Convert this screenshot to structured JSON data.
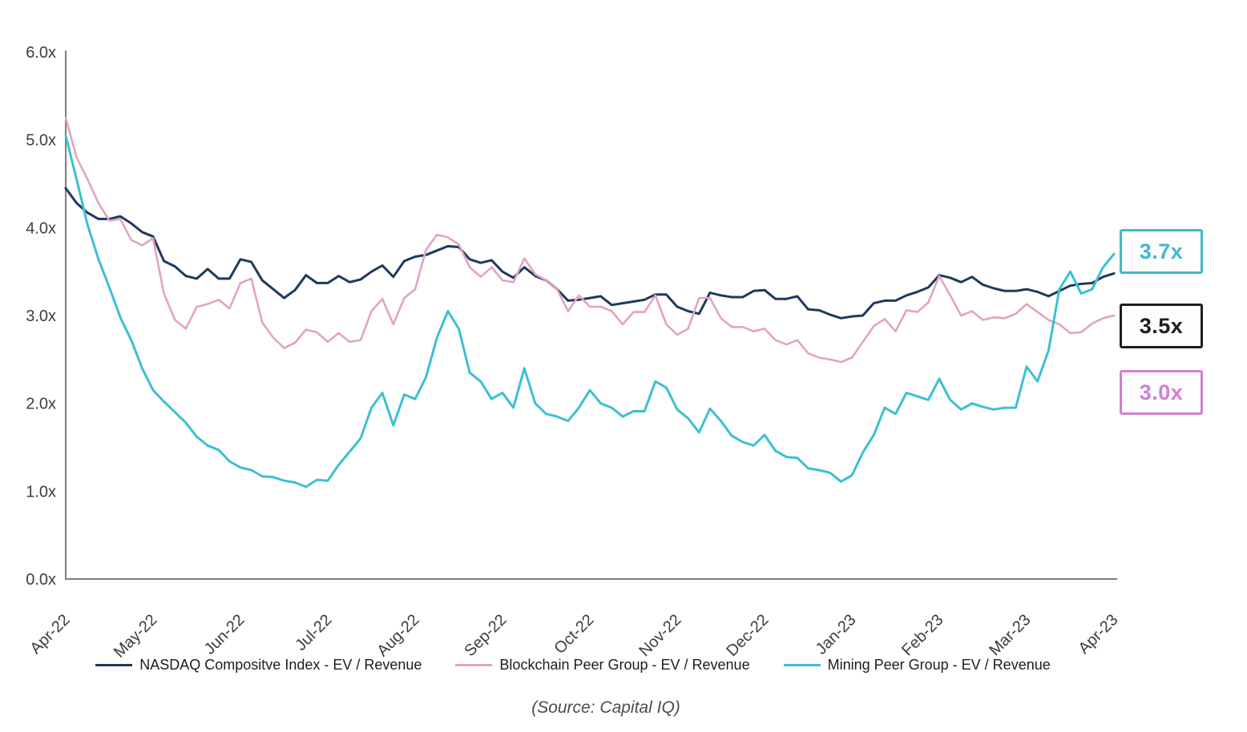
{
  "chart_data": {
    "type": "line",
    "title": "",
    "grid": false,
    "legend_position": "bottom",
    "x_axis": {
      "tick_labels": [
        "Apr-22",
        "May-22",
        "Jun-22",
        "Jul-22",
        "Aug-22",
        "Sep-22",
        "Oct-22",
        "Nov-22",
        "Dec-22",
        "Jan-23",
        "Feb-23",
        "Mar-23",
        "Apr-23"
      ],
      "label_rotation_deg": -45
    },
    "y_axis": {
      "tick_labels": [
        "0.0x",
        "1.0x",
        "2.0x",
        "3.0x",
        "4.0x",
        "5.0x",
        "6.0x"
      ],
      "min": 0,
      "max": 6
    },
    "sampling": {
      "start_month_index": 0,
      "step_months": 0.125
    },
    "series": [
      {
        "name": "NASDAQ Compositve Index - EV / Revenue",
        "color": "#1e3a5c",
        "stroke_width": 3,
        "values": [
          4.45,
          4.28,
          4.17,
          4.1,
          4.1,
          4.13,
          4.05,
          3.95,
          3.9,
          3.62,
          3.56,
          3.45,
          3.42,
          3.53,
          3.42,
          3.42,
          3.64,
          3.61,
          3.4,
          3.3,
          3.2,
          3.29,
          3.46,
          3.37,
          3.37,
          3.45,
          3.38,
          3.41,
          3.5,
          3.57,
          3.44,
          3.62,
          3.67,
          3.69,
          3.74,
          3.79,
          3.78,
          3.64,
          3.6,
          3.63,
          3.5,
          3.43,
          3.55,
          3.45,
          3.4,
          3.3,
          3.17,
          3.18,
          3.2,
          3.22,
          3.12,
          3.14,
          3.16,
          3.18,
          3.24,
          3.24,
          3.1,
          3.05,
          3.02,
          3.26,
          3.23,
          3.21,
          3.21,
          3.28,
          3.29,
          3.19,
          3.19,
          3.22,
          3.07,
          3.06,
          3.01,
          2.97,
          2.99,
          3.0,
          3.14,
          3.17,
          3.17,
          3.23,
          3.27,
          3.32,
          3.46,
          3.43,
          3.38,
          3.44,
          3.35,
          3.31,
          3.28,
          3.28,
          3.3,
          3.27,
          3.22,
          3.28,
          3.34,
          3.36,
          3.37,
          3.44,
          3.48
        ]
      },
      {
        "name": "Blockchain Peer Group - EV / Revenue",
        "color": "#e2a4c0",
        "stroke_width": 2.6,
        "values": [
          5.25,
          4.8,
          4.55,
          4.28,
          4.08,
          4.1,
          3.86,
          3.8,
          3.88,
          3.25,
          2.95,
          2.85,
          3.1,
          3.13,
          3.18,
          3.08,
          3.37,
          3.42,
          2.92,
          2.75,
          2.63,
          2.69,
          2.84,
          2.81,
          2.7,
          2.8,
          2.7,
          2.72,
          3.05,
          3.19,
          2.9,
          3.2,
          3.3,
          3.75,
          3.92,
          3.89,
          3.81,
          3.55,
          3.44,
          3.55,
          3.4,
          3.38,
          3.65,
          3.47,
          3.4,
          3.3,
          3.05,
          3.23,
          3.1,
          3.1,
          3.05,
          2.9,
          3.04,
          3.04,
          3.23,
          2.9,
          2.78,
          2.85,
          3.2,
          3.2,
          2.97,
          2.87,
          2.87,
          2.82,
          2.85,
          2.72,
          2.67,
          2.72,
          2.57,
          2.52,
          2.5,
          2.47,
          2.52,
          2.7,
          2.88,
          2.96,
          2.82,
          3.06,
          3.04,
          3.15,
          3.45,
          3.23,
          3.0,
          3.05,
          2.95,
          2.98,
          2.97,
          3.02,
          3.13,
          3.04,
          2.95,
          2.9,
          2.8,
          2.81,
          2.91,
          2.97,
          3.0
        ]
      },
      {
        "name": "Mining Peer Group - EV / Revenue",
        "color": "#3cc0d2",
        "stroke_width": 3,
        "values": [
          5.05,
          4.55,
          4.03,
          3.64,
          3.32,
          2.98,
          2.72,
          2.4,
          2.15,
          2.02,
          1.9,
          1.78,
          1.62,
          1.52,
          1.47,
          1.34,
          1.27,
          1.24,
          1.17,
          1.16,
          1.12,
          1.1,
          1.05,
          1.13,
          1.12,
          1.3,
          1.45,
          1.6,
          1.95,
          2.12,
          1.75,
          2.1,
          2.05,
          2.3,
          2.75,
          3.05,
          2.85,
          2.35,
          2.25,
          2.05,
          2.12,
          1.95,
          2.4,
          2.0,
          1.88,
          1.85,
          1.8,
          1.95,
          2.15,
          2.0,
          1.95,
          1.85,
          1.91,
          1.91,
          2.25,
          2.18,
          1.93,
          1.83,
          1.67,
          1.94,
          1.8,
          1.63,
          1.56,
          1.52,
          1.64,
          1.46,
          1.39,
          1.38,
          1.26,
          1.24,
          1.21,
          1.11,
          1.18,
          1.44,
          1.64,
          1.95,
          1.88,
          2.12,
          2.08,
          2.04,
          2.28,
          2.04,
          1.93,
          2.0,
          1.96,
          1.93,
          1.95,
          1.95,
          2.42,
          2.25,
          2.6,
          3.3,
          3.5,
          3.25,
          3.3,
          3.55,
          3.7
        ]
      }
    ],
    "callouts": [
      {
        "label": "3.7x",
        "color": "#3fb9cc"
      },
      {
        "label": "3.5x",
        "color": "#1d1d1d"
      },
      {
        "label": "3.0x",
        "color": "#d27fd3"
      }
    ],
    "axis_color": "#7f7f7f"
  },
  "source_note": "(Source: Capital IQ)"
}
